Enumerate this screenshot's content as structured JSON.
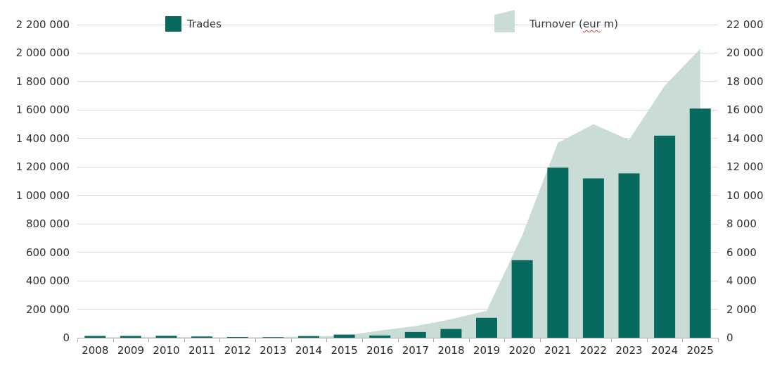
{
  "legend": {
    "trades_label": "Trades",
    "turnover_label_prefix": "Turnover (",
    "turnover_misspelled_word": "eur",
    "turnover_label_suffix": " m)"
  },
  "colors": {
    "bar": "#086a5f",
    "area": "#c9dcd6",
    "gridline": "#dadada",
    "axis": "#a8aeb2",
    "label_text": "#2d3135"
  },
  "chart_data": {
    "type": "combo",
    "categories": [
      "2008",
      "2009",
      "2010",
      "2011",
      "2012",
      "2013",
      "2014",
      "2015",
      "2016",
      "2017",
      "2018",
      "2019",
      "2020",
      "2021",
      "2022",
      "2023",
      "2024",
      "2025"
    ],
    "series": [
      {
        "name": "Trades",
        "type": "bar",
        "axis": "left",
        "values": [
          13000,
          13000,
          14000,
          9000,
          5000,
          4000,
          12000,
          22000,
          16000,
          40000,
          62000,
          140000,
          545000,
          1195000,
          1120000,
          1155000,
          1420000,
          1610000
        ]
      },
      {
        "name": "Turnover (eur m)",
        "type": "area",
        "axis": "right",
        "values": [
          30,
          40,
          50,
          40,
          30,
          40,
          90,
          150,
          500,
          820,
          1300,
          1900,
          7200,
          13700,
          15000,
          13900,
          17700,
          20300
        ]
      }
    ],
    "left_axis": {
      "min": 0,
      "max": 2200000,
      "step": 200000,
      "tick_labels": [
        "0",
        "200 000",
        "400 000",
        "600 000",
        "800 000",
        "1 000 000",
        "1 200 000",
        "1 400 000",
        "1 600 000",
        "1 800 000",
        "2 000 000",
        "2 200 000"
      ]
    },
    "right_axis": {
      "min": 0,
      "max": 22000,
      "step": 2000,
      "tick_labels": [
        "0",
        "2 000",
        "4 000",
        "6 000",
        "8 000",
        "10 000",
        "12 000",
        "14 000",
        "16 000",
        "18 000",
        "20 000",
        "22 000"
      ]
    },
    "grid": true,
    "legend_position": "top"
  }
}
